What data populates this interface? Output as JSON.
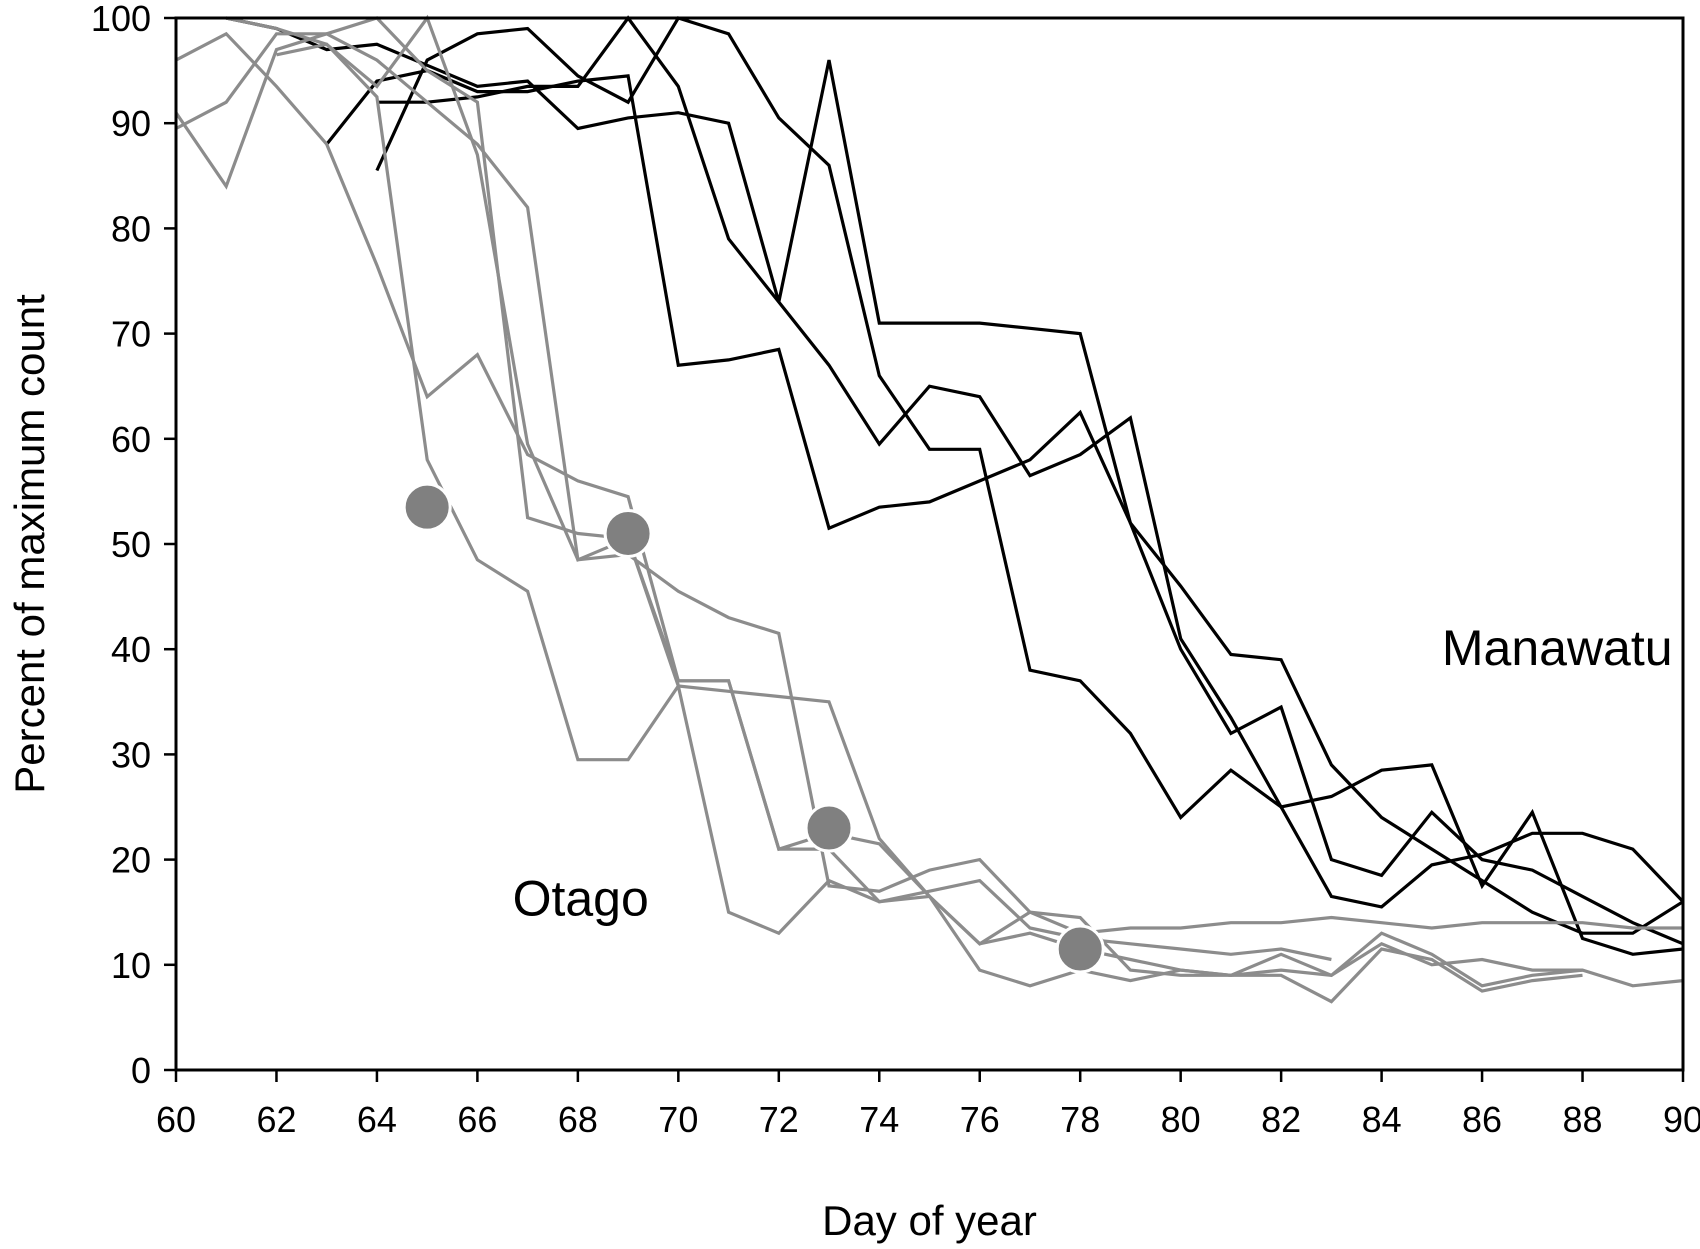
{
  "chart_data": {
    "type": "line",
    "title": "",
    "xlabel": "Day of year",
    "ylabel": "Percent of maximum count",
    "xlim": [
      60,
      90
    ],
    "ylim": [
      0,
      100
    ],
    "x_ticks": [
      60,
      62,
      64,
      66,
      68,
      70,
      72,
      74,
      76,
      78,
      80,
      82,
      84,
      86,
      88,
      90
    ],
    "y_ticks": [
      0,
      10,
      20,
      30,
      40,
      50,
      60,
      70,
      80,
      90,
      100
    ],
    "grid": false,
    "annotations": [
      {
        "text": "Manawatu",
        "x": 85.2,
        "y": 38.5
      },
      {
        "text": "Otago",
        "x": 66.7,
        "y": 14.7
      }
    ],
    "colors": {
      "Manawatu": "#000000",
      "Otago": "#8c8c8c",
      "marker": "#808080"
    },
    "series": [
      {
        "name": "Manawatu 1",
        "group": "Manawatu",
        "x": [
          61,
          62,
          63,
          64,
          65,
          66,
          67,
          68,
          69,
          70,
          71,
          72,
          73,
          74,
          75,
          76,
          77,
          78,
          79,
          80,
          81,
          82,
          83,
          84,
          85,
          86,
          87,
          88,
          89,
          90
        ],
        "y": [
          100,
          99,
          97,
          97.5,
          95.5,
          93.5,
          94,
          89.5,
          90.5,
          91,
          90,
          73,
          96,
          71,
          71,
          71,
          70.5,
          70,
          52,
          46,
          39.5,
          39,
          29,
          24,
          21,
          18,
          15,
          13,
          13,
          16
        ]
      },
      {
        "name": "Manawatu 2",
        "group": "Manawatu",
        "x": [
          63,
          64,
          65,
          66,
          67,
          68,
          69,
          70,
          71,
          72,
          73,
          74,
          75,
          76,
          77,
          78,
          79,
          80,
          81,
          82,
          83,
          84,
          85,
          86,
          87,
          88,
          89,
          90
        ],
        "y": [
          88,
          94,
          95,
          93,
          93,
          94,
          94.5,
          67,
          67.5,
          68.5,
          51.5,
          53.5,
          54,
          56,
          58,
          62.5,
          52,
          40,
          32,
          34.5,
          20,
          18.5,
          24.5,
          20,
          19,
          16.5,
          14,
          12
        ]
      },
      {
        "name": "Manawatu 3",
        "group": "Manawatu",
        "x": [
          64,
          65,
          66,
          67,
          68,
          69,
          70,
          71,
          72,
          73,
          74,
          75,
          76,
          77,
          78,
          79,
          80,
          81,
          82,
          83,
          84,
          85,
          86,
          87,
          88,
          89,
          90
        ],
        "y": [
          85.5,
          96,
          98.5,
          99,
          94.5,
          92,
          100,
          98.5,
          90.5,
          86,
          66,
          59,
          59,
          38,
          37,
          32,
          24,
          28.5,
          25,
          16.5,
          15.5,
          19.5,
          20.5,
          22.5,
          22.5,
          21,
          16
        ]
      },
      {
        "name": "Manawatu 4",
        "group": "Manawatu",
        "x": [
          64,
          65,
          66,
          67,
          68,
          69,
          70,
          71,
          72,
          73,
          74,
          75,
          76,
          77,
          78,
          79,
          80,
          81,
          82,
          83,
          84,
          85,
          86,
          87,
          88,
          89,
          90
        ],
        "y": [
          92,
          92,
          92.5,
          93.5,
          93.5,
          100,
          93.5,
          79,
          73,
          67,
          59.5,
          65,
          64,
          56.5,
          58.5,
          62,
          41,
          33.5,
          25,
          26,
          28.5,
          29,
          17.5,
          24.5,
          12.5,
          11,
          11.5
        ]
      },
      {
        "name": "Otago 1",
        "group": "Otago",
        "x": [
          60,
          61,
          62,
          63,
          64,
          65,
          66,
          67,
          68,
          69,
          70,
          71,
          72,
          73,
          74,
          75,
          76,
          77,
          78,
          79,
          80,
          81,
          82,
          83
        ],
        "y": [
          96,
          98.5,
          93.5,
          88,
          76.5,
          64,
          68,
          58.5,
          56,
          54.5,
          37,
          37,
          21,
          21,
          16,
          17,
          18,
          13.5,
          12.5,
          12,
          11.5,
          11,
          11.5,
          10.5
        ]
      },
      {
        "name": "Otago 2",
        "group": "Otago",
        "x": [
          60,
          61,
          62,
          63,
          64,
          65,
          66,
          67,
          68,
          69,
          70,
          71,
          72,
          73,
          74,
          75,
          76,
          77,
          78,
          79,
          80,
          81,
          82,
          83,
          84,
          85,
          86,
          87,
          88,
          89,
          90
        ],
        "y": [
          89.5,
          92,
          98.5,
          98.5,
          96,
          92,
          88,
          82,
          48.5,
          49,
          45.5,
          43,
          41.5,
          17.5,
          17,
          19,
          20,
          15,
          13,
          13.5,
          13.5,
          14,
          14,
          14.5,
          14,
          13.5,
          14,
          14,
          14,
          13.5,
          13.5
        ]
      },
      {
        "name": "Otago 3",
        "group": "Otago",
        "x": [
          60,
          61,
          62,
          63,
          64,
          65,
          66,
          67,
          68,
          69,
          70,
          71,
          72,
          73,
          74,
          75,
          76,
          77,
          78,
          79,
          80,
          81,
          82,
          83,
          84,
          85,
          86,
          87,
          88,
          89,
          90
        ],
        "y": [
          91,
          84,
          97,
          98.5,
          100,
          95,
          92,
          52.5,
          51,
          50.5,
          36.5,
          36,
          35.5,
          35,
          22,
          16.5,
          12,
          15,
          14.5,
          9.5,
          9,
          9,
          9.5,
          9,
          12,
          10,
          10.5,
          9.5,
          9.5,
          8,
          8.5
        ]
      },
      {
        "name": "Otago 4",
        "group": "Otago",
        "x": [
          61,
          62,
          63,
          64,
          65,
          66,
          67,
          68,
          69,
          70,
          71,
          72,
          73,
          74,
          75,
          76,
          77,
          78,
          79,
          80,
          81,
          82,
          83,
          84,
          85,
          86,
          87,
          88
        ],
        "y": [
          100,
          99,
          97.5,
          92.5,
          58,
          48.5,
          45.5,
          29.5,
          29.5,
          36.5,
          15,
          13,
          18,
          16,
          16.5,
          9.5,
          8,
          9.5,
          8.5,
          9.5,
          9,
          9,
          6.5,
          11.5,
          10.5,
          7.5,
          8.5,
          9
        ]
      },
      {
        "name": "Otago 5",
        "group": "Otago",
        "x": [
          62,
          63,
          64,
          65,
          66,
          67,
          68,
          69,
          70,
          71,
          72,
          73,
          74,
          75,
          76,
          77,
          78,
          79,
          80,
          81,
          82,
          83,
          84,
          85,
          86,
          87,
          88
        ],
        "y": [
          96.5,
          97.5,
          93.5,
          100,
          87,
          59.5,
          48.5,
          50.5,
          37,
          37,
          21,
          22.5,
          21.5,
          16.5,
          12,
          13,
          11.5,
          10.5,
          9.5,
          9,
          11,
          9,
          13,
          11,
          8,
          9,
          9.5
        ]
      }
    ],
    "markers": [
      {
        "x": 65,
        "y": 53.5
      },
      {
        "x": 69,
        "y": 51
      },
      {
        "x": 73,
        "y": 23
      },
      {
        "x": 78,
        "y": 11.5
      }
    ]
  }
}
